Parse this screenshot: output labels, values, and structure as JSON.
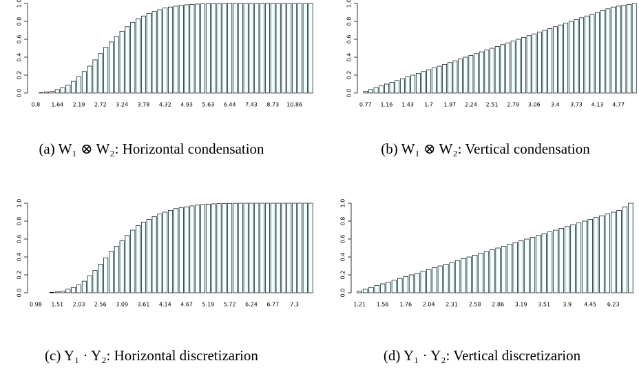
{
  "chart_data": [
    {
      "type": "bar",
      "caption": "(a) W₁ ⊗ W₂: Horizontal condensation",
      "color": "#f0ffff",
      "categories": [
        "0.8",
        null,
        null,
        null,
        "1.64",
        null,
        null,
        null,
        "2.19",
        null,
        null,
        null,
        "2.72",
        null,
        null,
        null,
        "3.24",
        null,
        null,
        null,
        "3.78",
        null,
        null,
        null,
        "4.32",
        null,
        null,
        null,
        "4.93",
        null,
        null,
        null,
        "5.63",
        null,
        null,
        null,
        "6.44",
        null,
        null,
        null,
        "7.43",
        null,
        null,
        null,
        "8.73",
        null,
        null,
        null,
        "10.86",
        null,
        null,
        null
      ],
      "values": [
        0,
        0.003,
        0.01,
        0.02,
        0.04,
        0.06,
        0.09,
        0.13,
        0.18,
        0.24,
        0.3,
        0.37,
        0.44,
        0.51,
        0.57,
        0.63,
        0.69,
        0.74,
        0.79,
        0.83,
        0.86,
        0.89,
        0.91,
        0.93,
        0.95,
        0.96,
        0.97,
        0.98,
        0.985,
        0.99,
        0.993,
        0.995,
        0.997,
        0.998,
        0.999,
        1,
        1,
        1,
        1,
        1,
        1,
        1,
        1,
        1,
        1,
        1,
        1,
        1,
        1,
        1,
        1,
        1
      ],
      "ylim": [
        0,
        1
      ],
      "yticks": [
        {
          "value": 0,
          "label": "0.0"
        },
        0.2,
        0.4,
        0.6,
        0.8,
        {
          "value": 1,
          "label": "1.0"
        }
      ]
    },
    {
      "type": "bar",
      "caption": "(b) W₁ ⊗ W₂: Vertical condensation",
      "color": "#f0ffff",
      "categories": [
        "0.77",
        null,
        null,
        null,
        "1.16",
        null,
        null,
        null,
        "1.43",
        null,
        null,
        null,
        "1.7",
        null,
        null,
        null,
        "1.97",
        null,
        null,
        null,
        "2.24",
        null,
        null,
        null,
        "2.51",
        null,
        null,
        null,
        "2.79",
        null,
        null,
        null,
        "3.06",
        null,
        null,
        null,
        "3.4",
        null,
        null,
        null,
        "3.73",
        null,
        null,
        null,
        "4.13",
        null,
        null,
        null,
        "4.77",
        null,
        null,
        null
      ],
      "values": [
        0.02,
        0.04,
        0.06,
        0.08,
        0.1,
        0.12,
        0.14,
        0.16,
        0.18,
        0.2,
        0.22,
        0.24,
        0.26,
        0.28,
        0.3,
        0.32,
        0.34,
        0.36,
        0.38,
        0.4,
        0.42,
        0.44,
        0.46,
        0.48,
        0.5,
        0.52,
        0.54,
        0.56,
        0.58,
        0.6,
        0.62,
        0.64,
        0.66,
        0.68,
        0.7,
        0.72,
        0.74,
        0.76,
        0.78,
        0.8,
        0.82,
        0.84,
        0.86,
        0.88,
        0.9,
        0.92,
        0.94,
        0.96,
        0.97,
        0.98,
        0.99,
        1
      ],
      "ylim": [
        0,
        1
      ],
      "yticks": [
        {
          "value": 0,
          "label": "0.0"
        },
        0.2,
        0.4,
        0.6,
        0.8,
        {
          "value": 1,
          "label": "1.0"
        }
      ]
    },
    {
      "type": "bar",
      "caption": "(c) Y₁ · Y₂: Horizontal discretizarion",
      "color": "#f0ffff",
      "categories": [
        "0.98",
        null,
        null,
        null,
        "1.51",
        null,
        null,
        null,
        "2.03",
        null,
        null,
        null,
        "2.56",
        null,
        null,
        null,
        "3.09",
        null,
        null,
        null,
        "3.61",
        null,
        null,
        null,
        "4.14",
        null,
        null,
        null,
        "4.67",
        null,
        null,
        null,
        "5.19",
        null,
        null,
        null,
        "5.72",
        null,
        null,
        null,
        "6.24",
        null,
        null,
        null,
        "6.77",
        null,
        null,
        null,
        "7.3",
        null,
        null,
        null
      ],
      "values": [
        0,
        0,
        0,
        0.005,
        0.01,
        0.02,
        0.04,
        0.06,
        0.09,
        0.13,
        0.19,
        0.25,
        0.32,
        0.39,
        0.46,
        0.52,
        0.58,
        0.64,
        0.7,
        0.75,
        0.79,
        0.82,
        0.85,
        0.88,
        0.9,
        0.92,
        0.94,
        0.95,
        0.96,
        0.97,
        0.98,
        0.985,
        0.99,
        0.993,
        0.995,
        0.997,
        0.998,
        0.999,
        1,
        1,
        1,
        1,
        1,
        1,
        1,
        1,
        1,
        1,
        1,
        1,
        1,
        1
      ],
      "ylim": [
        0,
        1
      ],
      "yticks": [
        {
          "value": 0,
          "label": "0.0"
        },
        0.2,
        0.4,
        0.6,
        0.8,
        {
          "value": 1,
          "label": "1.0"
        }
      ]
    },
    {
      "type": "bar",
      "caption": "(d) Y₁ · Y₂: Vertical discretizarion",
      "color": "#f0ffff",
      "categories": [
        "1.21",
        null,
        null,
        null,
        "1.56",
        null,
        null,
        null,
        "1.76",
        null,
        null,
        null,
        "2.04",
        null,
        null,
        null,
        "2.31",
        null,
        null,
        null,
        "2.58",
        null,
        null,
        null,
        "2.86",
        null,
        null,
        null,
        "3.19",
        null,
        null,
        null,
        "3.51",
        null,
        null,
        null,
        "3.9",
        null,
        null,
        null,
        "4.45",
        null,
        null,
        null,
        "6.23",
        null,
        null,
        null
      ],
      "values": [
        0.02,
        0.04,
        0.06,
        0.08,
        0.1,
        0.12,
        0.14,
        0.16,
        0.18,
        0.2,
        0.22,
        0.24,
        0.26,
        0.28,
        0.3,
        0.32,
        0.34,
        0.36,
        0.38,
        0.4,
        0.42,
        0.44,
        0.46,
        0.48,
        0.5,
        0.52,
        0.54,
        0.56,
        0.58,
        0.6,
        0.62,
        0.64,
        0.66,
        0.68,
        0.7,
        0.72,
        0.74,
        0.76,
        0.78,
        0.8,
        0.82,
        0.84,
        0.86,
        0.88,
        0.9,
        0.92,
        0.96,
        1
      ],
      "ylim": [
        0,
        1
      ],
      "yticks": [
        {
          "value": 0,
          "label": "0.0"
        },
        0.2,
        0.4,
        0.6,
        0.8,
        {
          "value": 1,
          "label": "1.0"
        }
      ]
    }
  ]
}
